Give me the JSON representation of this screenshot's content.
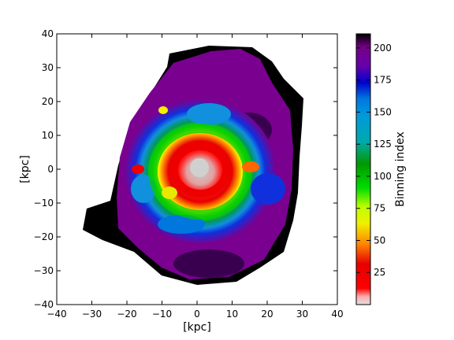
{
  "chart_data": {
    "type": "heatmap",
    "title": "",
    "xlabel": "[kpc]",
    "ylabel": "[kpc]",
    "xlim": [
      -40,
      40
    ],
    "ylim": [
      -40,
      40
    ],
    "x_ticks": [
      "−40",
      "−30",
      "−20",
      "−10",
      "0",
      "10",
      "20",
      "30",
      "40"
    ],
    "y_ticks": [
      "40",
      "30",
      "20",
      "10",
      "0",
      "−10",
      "−20",
      "−30",
      "−40"
    ],
    "colorbar": {
      "label": "Binning index",
      "colormap": "nipy_spectral",
      "range": [
        0,
        211
      ],
      "ticks": [
        "25",
        "50",
        "75",
        "100",
        "125",
        "150",
        "175",
        "200"
      ]
    },
    "description_regions": [
      {
        "region": "core",
        "center": [
          0,
          0
        ],
        "bin_index_range": [
          0,
          10
        ]
      },
      {
        "region": "inner ring",
        "radius_kpc": 10,
        "bin_index_range": [
          10,
          60
        ]
      },
      {
        "region": "middle ring",
        "radius_kpc": 18,
        "bin_index_range": [
          60,
          150
        ]
      },
      {
        "region": "outer disk",
        "radius_kpc": 30,
        "bin_index_range": [
          150,
          211
        ]
      }
    ]
  }
}
